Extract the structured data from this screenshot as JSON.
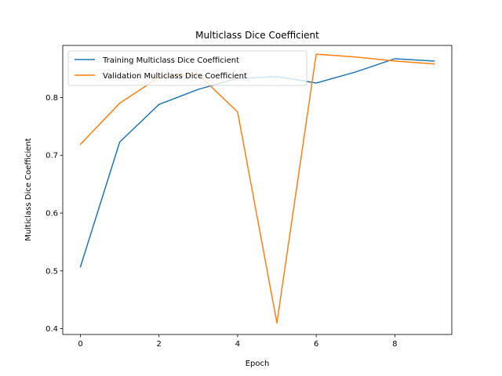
{
  "chart_data": {
    "type": "line",
    "title": "Multiclass Dice Coefficient",
    "xlabel": "Epoch",
    "ylabel": "Multiclass Dice Coefficient",
    "xlim": [
      -0.45,
      9.45
    ],
    "ylim": [
      0.39,
      0.89
    ],
    "xticks": [
      0,
      2,
      4,
      6,
      8
    ],
    "yticks": [
      0.4,
      0.5,
      0.6,
      0.7,
      0.8
    ],
    "grid": false,
    "legend_position": "upper-left",
    "x": [
      0,
      1,
      2,
      3,
      4,
      5,
      6,
      7,
      8,
      9
    ],
    "series": [
      {
        "name": "Training Multiclass Dice Coefficient",
        "color": "#1f77b4",
        "values": [
          0.507,
          0.723,
          0.788,
          0.814,
          0.833,
          0.836,
          0.825,
          0.844,
          0.867,
          0.863
        ]
      },
      {
        "name": "Validation Multiclass Dice Coefficient",
        "color": "#ff7f0e",
        "values": [
          0.719,
          0.79,
          0.835,
          0.84,
          0.775,
          0.41,
          0.875,
          0.87,
          0.863,
          0.858
        ]
      }
    ]
  }
}
